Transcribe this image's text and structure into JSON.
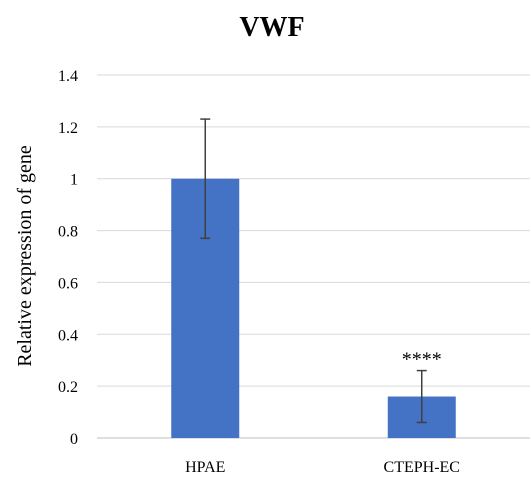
{
  "chart_data": {
    "type": "bar",
    "title": "VWF",
    "xlabel": "",
    "ylabel": "Relative expression of gene",
    "categories": [
      "HPAE",
      "CTEPH-EC"
    ],
    "values": [
      1.0,
      0.16
    ],
    "error": [
      0.23,
      0.1
    ],
    "ylim": [
      0,
      1.4
    ],
    "yticks": [
      0,
      0.2,
      0.4,
      0.6,
      0.8,
      1,
      1.2,
      1.4
    ],
    "ytick_labels": [
      "0",
      "0.2",
      "0.4",
      "0.6",
      "0.8",
      "1",
      "1.2",
      "1.4"
    ],
    "annotations": [
      {
        "category": "CTEPH-EC",
        "text": "****"
      }
    ],
    "grid": true,
    "legend": "none",
    "colors": {
      "bar": "#4472C4",
      "error_bar": "#404040",
      "grid": "#d9d9d9"
    }
  }
}
